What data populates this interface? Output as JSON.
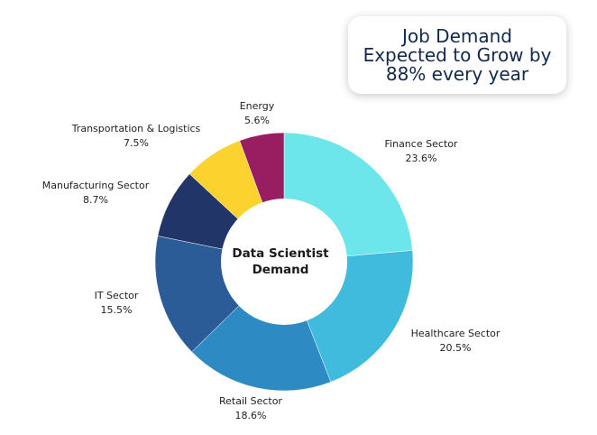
{
  "callout": {
    "text": "Job Demand Expected to Grow by 88% every year"
  },
  "chart_data": {
    "type": "pie",
    "variant": "donut",
    "center_label_lines": [
      "Data Scientist",
      "Demand"
    ],
    "unit": "%",
    "start_angle": "12 o'clock",
    "direction": "clockwise",
    "slices": [
      {
        "name": "Finance Sector",
        "value": 23.6,
        "label": "23.6%",
        "color": "#6ce6ea"
      },
      {
        "name": "Healthcare Sector",
        "value": 20.5,
        "label": "20.5%",
        "color": "#40bbdd"
      },
      {
        "name": "Retail Sector",
        "value": 18.6,
        "label": "18.6%",
        "color": "#2e8ac3"
      },
      {
        "name": "IT Sector",
        "value": 15.5,
        "label": "15.5%",
        "color": "#2b5c98"
      },
      {
        "name": "Manufacturing Sector",
        "value": 8.7,
        "label": "8.7%",
        "color": "#223568"
      },
      {
        "name": "Transportation & Logistics",
        "value": 7.5,
        "label": "7.5%",
        "color": "#fbd22e"
      },
      {
        "name": "Energy",
        "value": 5.6,
        "label": "5.6%",
        "color": "#991e61"
      }
    ]
  }
}
